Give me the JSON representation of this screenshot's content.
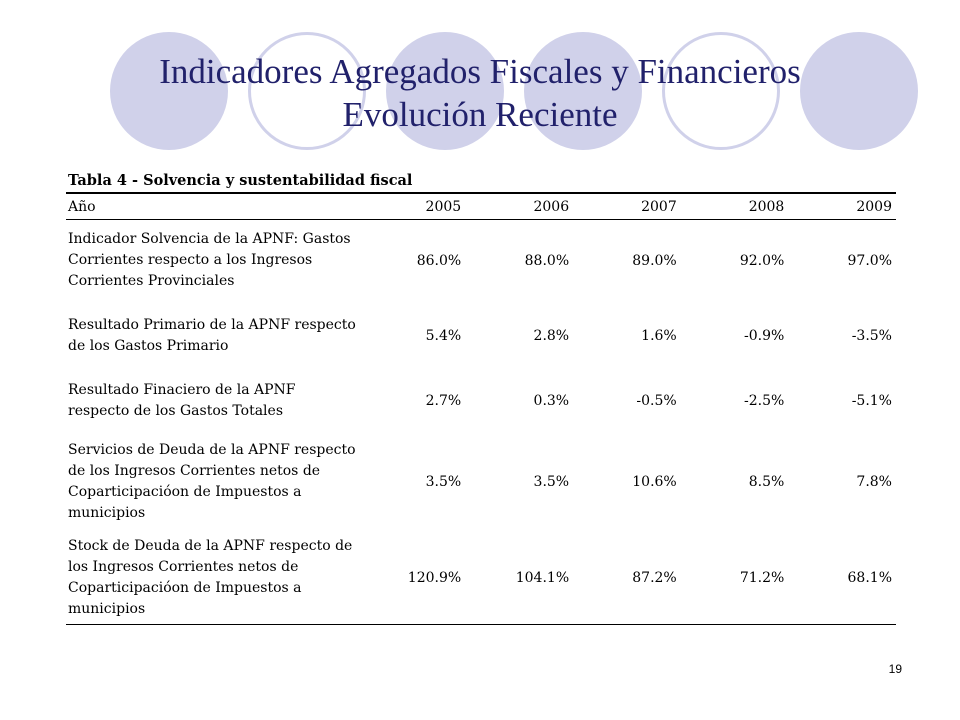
{
  "slide": {
    "title_line1": "Indicadores Agregados Fiscales y Financieros",
    "title_line2": "Evolución Reciente",
    "page_number": "19",
    "decor_color": "#d0d1ea",
    "title_color": "#21216b"
  },
  "table": {
    "caption": "Tabla 4 - Solvencia y sustentabilidad fiscal",
    "header": {
      "label": "Año",
      "years": [
        "2005",
        "2006",
        "2007",
        "2008",
        "2009"
      ]
    },
    "rows": [
      {
        "label": "Indicador Solvencia de la APNF: Gastos Corrientes respecto a los Ingresos Corrientes Provinciales",
        "values": [
          "86.0%",
          "88.0%",
          "89.0%",
          "92.0%",
          "97.0%"
        ]
      },
      {
        "label": "Resultado Primario de la APNF respecto de los Gastos Primario",
        "values": [
          "5.4%",
          "2.8%",
          "1.6%",
          "-0.9%",
          "-3.5%"
        ]
      },
      {
        "label": "Resultado Finaciero de la APNF respecto de los Gastos Totales",
        "values": [
          "2.7%",
          "0.3%",
          "-0.5%",
          "-2.5%",
          "-5.1%"
        ]
      },
      {
        "label": "Servicios de Deuda de la APNF respecto de los Ingresos Corrientes netos de Coparticipacióon de Impuestos a municipios",
        "values": [
          "3.5%",
          "3.5%",
          "10.6%",
          "8.5%",
          "7.8%"
        ]
      },
      {
        "label": "Stock de Deuda de la APNF respecto de los Ingresos Corrientes netos de Coparticipacióon de Impuestos a municipios",
        "values": [
          "120.9%",
          "104.1%",
          "87.2%",
          "71.2%",
          "68.1%"
        ]
      }
    ]
  }
}
